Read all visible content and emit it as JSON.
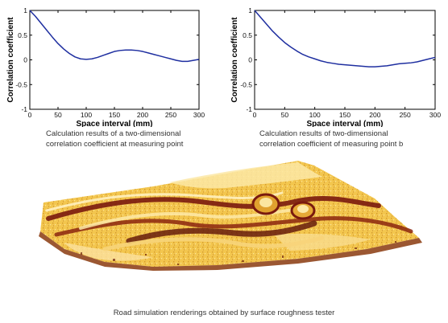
{
  "colors": {
    "curve": "#1f2fa0",
    "axis": "#000000",
    "background": "#ffffff"
  },
  "chart_data": [
    {
      "type": "line",
      "title": "",
      "xlabel": "Space interval (mm)",
      "ylabel": "Correlation coefficient",
      "xlim": [
        0,
        300
      ],
      "ylim": [
        -1,
        1
      ],
      "xticks": [
        "0",
        "50",
        "100",
        "150",
        "200",
        "250",
        "300"
      ],
      "yticks": [
        "-1",
        "-0.5",
        "0",
        "0.5",
        "1"
      ],
      "grid": false,
      "caption": [
        "Calculation results of a two-dimensional",
        "correlation coefficient at measuring point"
      ],
      "x": [
        0,
        10,
        20,
        30,
        40,
        50,
        60,
        70,
        80,
        90,
        100,
        110,
        120,
        130,
        140,
        150,
        160,
        170,
        180,
        190,
        200,
        210,
        220,
        230,
        240,
        250,
        260,
        270,
        280,
        290,
        300
      ],
      "y": [
        1.0,
        0.88,
        0.74,
        0.6,
        0.46,
        0.33,
        0.22,
        0.13,
        0.06,
        0.02,
        0.01,
        0.02,
        0.05,
        0.09,
        0.13,
        0.17,
        0.19,
        0.2,
        0.2,
        0.19,
        0.17,
        0.14,
        0.11,
        0.08,
        0.05,
        0.02,
        -0.01,
        -0.03,
        -0.03,
        -0.01,
        0.01
      ]
    },
    {
      "type": "line",
      "title": "",
      "xlabel": "Space interval (mm)",
      "ylabel": "Correlation coefficient",
      "xlim": [
        0,
        300
      ],
      "ylim": [
        -1,
        1
      ],
      "xticks": [
        "0",
        "50",
        "100",
        "150",
        "200",
        "250",
        "300"
      ],
      "yticks": [
        "-1",
        "-0.5",
        "0",
        "0.5",
        "1"
      ],
      "grid": false,
      "caption": [
        "Calculation results of two-dimensional",
        "correlation coefficient of measuring point b"
      ],
      "x": [
        0,
        10,
        20,
        30,
        40,
        50,
        60,
        70,
        80,
        90,
        100,
        110,
        120,
        130,
        140,
        150,
        160,
        170,
        180,
        190,
        200,
        210,
        220,
        230,
        240,
        250,
        260,
        270,
        280,
        290,
        300
      ],
      "y": [
        1.0,
        0.86,
        0.72,
        0.58,
        0.46,
        0.35,
        0.26,
        0.18,
        0.11,
        0.06,
        0.02,
        -0.02,
        -0.05,
        -0.07,
        -0.09,
        -0.1,
        -0.11,
        -0.12,
        -0.13,
        -0.14,
        -0.14,
        -0.13,
        -0.12,
        -0.1,
        -0.08,
        -0.07,
        -0.06,
        -0.04,
        -0.01,
        0.02,
        0.05
      ]
    }
  ],
  "figure_caption": "Road simulation renderings obtained by surface roughness tester"
}
